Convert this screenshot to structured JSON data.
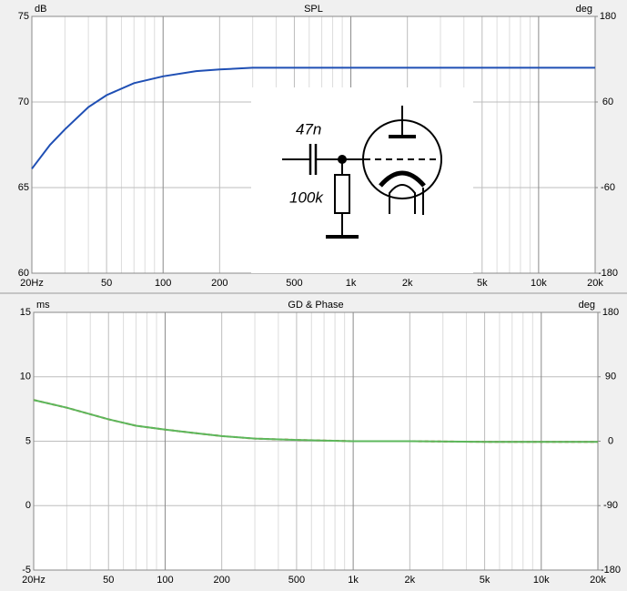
{
  "chart_data": [
    {
      "type": "line",
      "title": "SPL",
      "ylabel": "dB",
      "y2label": "deg",
      "xscale": "log",
      "xlim": [
        20,
        20000
      ],
      "xticks": [
        {
          "value": 20,
          "label": "20Hz"
        },
        50,
        100,
        200,
        500,
        {
          "value": 1000,
          "label": "1k"
        },
        {
          "value": 2000,
          "label": "2k"
        },
        {
          "value": 5000,
          "label": "5k"
        },
        {
          "value": 10000,
          "label": "10k"
        },
        {
          "value": 20000,
          "label": "20k"
        }
      ],
      "minor_xticks": [
        30,
        40,
        60,
        70,
        80,
        90,
        300,
        400,
        600,
        700,
        800,
        900,
        3000,
        4000,
        6000,
        7000,
        8000,
        9000
      ],
      "ylim": [
        60,
        75
      ],
      "yticks": [
        60,
        65,
        70,
        75
      ],
      "y2lim": [
        -180,
        180
      ],
      "y2ticks": [
        -180,
        -60,
        60,
        180
      ],
      "grid": true,
      "annotations": [
        "47n",
        "100k"
      ],
      "x": [
        20,
        25,
        30,
        40,
        50,
        70,
        100,
        150,
        200,
        300,
        500,
        1000,
        2000,
        5000,
        10000,
        20000
      ],
      "series": [
        {
          "color": "#1f4fb4",
          "dashed": false,
          "values": [
            66.1,
            67.5,
            68.4,
            69.7,
            70.4,
            71.1,
            71.5,
            71.8,
            71.9,
            72.0,
            72.0,
            72.0,
            72.0,
            72.0,
            72.0,
            72.0
          ]
        }
      ]
    },
    {
      "type": "line",
      "title": "GD & Phase",
      "ylabel": "ms",
      "y2label": "deg",
      "xscale": "log",
      "xlim": [
        20,
        20000
      ],
      "xticks": [
        {
          "value": 20,
          "label": "20Hz"
        },
        50,
        100,
        200,
        500,
        {
          "value": 1000,
          "label": "1k"
        },
        {
          "value": 2000,
          "label": "2k"
        },
        {
          "value": 5000,
          "label": "5k"
        },
        {
          "value": 10000,
          "label": "10k"
        },
        {
          "value": 20000,
          "label": "20k"
        }
      ],
      "minor_xticks": [
        30,
        40,
        60,
        70,
        80,
        90,
        300,
        400,
        600,
        700,
        800,
        900,
        3000,
        4000,
        6000,
        7000,
        8000,
        9000
      ],
      "ylim": [
        -5,
        15
      ],
      "yticks": [
        -5,
        0,
        5,
        10,
        15
      ],
      "y2lim": [
        -180,
        180
      ],
      "y2ticks": [
        -180,
        -90,
        0,
        90,
        180
      ],
      "grid": true,
      "x": [
        20,
        30,
        50,
        70,
        100,
        150,
        200,
        300,
        500,
        1000,
        2000,
        5000,
        10000,
        20000
      ],
      "series": [
        {
          "color": "#d04a20",
          "dashed": true,
          "values": [
            8.2,
            7.6,
            6.7,
            6.2,
            5.9,
            5.6,
            5.4,
            5.2,
            5.1,
            5.0,
            5.0,
            4.95,
            4.95,
            4.95
          ]
        },
        {
          "color": "#5cb85c",
          "dashed": false,
          "values": [
            8.2,
            7.6,
            6.7,
            6.2,
            5.9,
            5.6,
            5.4,
            5.2,
            5.1,
            5.0,
            5.0,
            4.95,
            4.95,
            4.95
          ]
        }
      ]
    }
  ]
}
